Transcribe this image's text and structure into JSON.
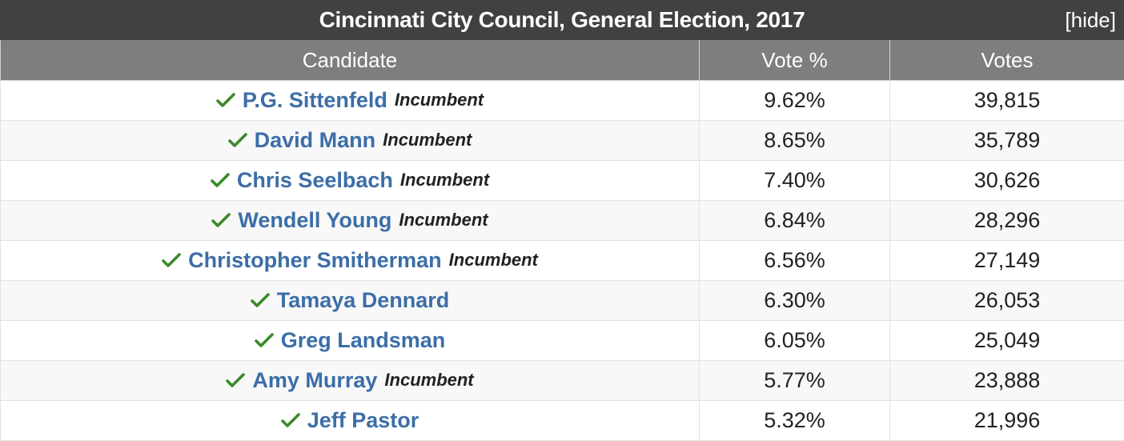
{
  "title": "Cincinnati City Council, General Election, 2017",
  "hide_label": "[hide]",
  "headers": {
    "candidate": "Candidate",
    "vote_pct": "Vote %",
    "votes": "Votes"
  },
  "colors": {
    "title_bg": "#414141",
    "header_bg": "#7e7e7e",
    "link": "#3b6ea8",
    "check": "#3a8a2a"
  },
  "rows": [
    {
      "name": "P.G. Sittenfeld",
      "incumbent": "Incumbent",
      "pct": "9.62%",
      "votes": "39,815",
      "icon": "check-icon"
    },
    {
      "name": "David Mann",
      "incumbent": "Incumbent",
      "pct": "8.65%",
      "votes": "35,789",
      "icon": "check-icon"
    },
    {
      "name": "Chris Seelbach",
      "incumbent": "Incumbent",
      "pct": "7.40%",
      "votes": "30,626",
      "icon": "check-icon"
    },
    {
      "name": "Wendell Young",
      "incumbent": "Incumbent",
      "pct": "6.84%",
      "votes": "28,296",
      "icon": "check-icon"
    },
    {
      "name": "Christopher Smitherman",
      "incumbent": "Incumbent",
      "pct": "6.56%",
      "votes": "27,149",
      "icon": "check-icon"
    },
    {
      "name": "Tamaya Dennard",
      "incumbent": "",
      "pct": "6.30%",
      "votes": "26,053",
      "icon": "check-icon"
    },
    {
      "name": "Greg Landsman",
      "incumbent": "",
      "pct": "6.05%",
      "votes": "25,049",
      "icon": "check-icon"
    },
    {
      "name": "Amy Murray",
      "incumbent": "Incumbent",
      "pct": "5.77%",
      "votes": "23,888",
      "icon": "check-icon"
    },
    {
      "name": "Jeff Pastor",
      "incumbent": "",
      "pct": "5.32%",
      "votes": "21,996",
      "icon": "check-icon"
    }
  ]
}
